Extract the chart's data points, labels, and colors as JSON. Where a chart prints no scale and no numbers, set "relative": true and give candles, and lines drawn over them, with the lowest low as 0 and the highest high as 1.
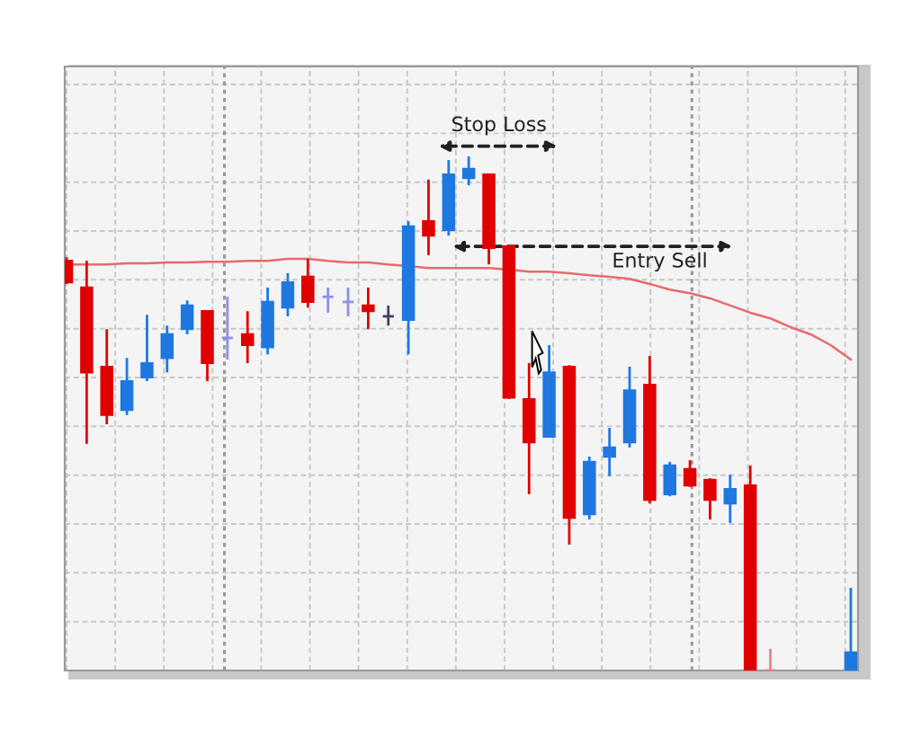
{
  "chart_data": {
    "type": "candlestick",
    "relative": true,
    "grid": true,
    "categories": [
      null,
      null,
      null,
      null,
      null,
      null,
      null,
      null,
      null,
      null,
      null,
      null,
      null,
      null,
      null,
      null,
      null,
      null,
      null,
      null,
      null,
      null,
      null,
      null,
      null,
      null,
      null,
      null,
      null,
      null,
      null,
      null,
      null,
      null,
      null,
      null,
      null,
      null,
      null,
      null
    ],
    "ohlc": [
      [
        0.797,
        0.804,
        0.752,
        0.755
      ],
      [
        0.745,
        0.797,
        0.441,
        0.58
      ],
      [
        0.591,
        0.664,
        0.479,
        0.497
      ],
      [
        0.507,
        0.608,
        0.497,
        0.563
      ],
      [
        0.57,
        0.692,
        0.563,
        0.598
      ],
      [
        0.608,
        0.671,
        0.58,
        0.654
      ],
      [
        0.664,
        0.72,
        0.654,
        0.71
      ],
      [
        0.699,
        0.699,
        0.563,
        0.598
      ],
      [
        0.647,
        0.727,
        0.605,
        0.647
      ],
      [
        0.654,
        0.699,
        0.598,
        0.633
      ],
      [
        0.629,
        0.745,
        0.615,
        0.717
      ],
      [
        0.706,
        0.773,
        0.689,
        0.755
      ],
      [
        0.766,
        0.801,
        0.706,
        0.717
      ],
      [
        0.727,
        0.745,
        0.696,
        0.727
      ],
      [
        0.717,
        0.745,
        0.689,
        0.717
      ],
      [
        0.71,
        0.745,
        0.664,
        0.699
      ],
      [
        0.689,
        0.71,
        0.671,
        0.689
      ],
      [
        0.682,
        0.874,
        0.615,
        0.864
      ],
      [
        0.874,
        0.955,
        0.808,
        0.846
      ],
      [
        0.857,
        0.993,
        0.846,
        0.965
      ],
      [
        0.958,
        1.0,
        0.944,
        0.976
      ],
      [
        0.965,
        0.965,
        0.79,
        0.822
      ],
      [
        0.825,
        0.825,
        0.528,
        0.531
      ],
      [
        0.528,
        0.598,
        0.343,
        0.444
      ],
      [
        0.455,
        0.633,
        0.455,
        0.58
      ],
      [
        0.591,
        0.594,
        0.245,
        0.297
      ],
      [
        0.304,
        0.416,
        0.294,
        0.406
      ],
      [
        0.416,
        0.472,
        0.378,
        0.434
      ],
      [
        0.444,
        0.591,
        0.434,
        0.545
      ],
      [
        0.556,
        0.612,
        0.325,
        0.332
      ],
      [
        0.343,
        0.406,
        0.339,
        0.399
      ],
      [
        0.392,
        0.409,
        0.357,
        0.36
      ],
      [
        0.371,
        0.374,
        0.294,
        0.332
      ],
      [
        0.325,
        0.381,
        0.287,
        0.353
      ],
      [
        0.36,
        0.399,
        0.0,
        0.0
      ],
      [
        0.0,
        0.042,
        0.0,
        0.0
      ],
      null,
      null,
      null,
      [
        0.0,
        0.161,
        0.0,
        0.035
      ]
    ],
    "colors": [
      "#e00000",
      "#e00000",
      "#e00000",
      "#1e78e0",
      "#1e78e0",
      "#1e78e0",
      "#1e78e0",
      "#e00000",
      "#8f8fe8",
      "#e00000",
      "#1e78e0",
      "#1e78e0",
      "#e00000",
      "#8f8fe8",
      "#8f8fe8",
      "#e00000",
      "#404060",
      "#1e78e0",
      "#e00000",
      "#1e78e0",
      "#1e78e0",
      "#e00000",
      "#e00000",
      "#e00000",
      "#1e78e0",
      "#e00000",
      "#1e78e0",
      "#1e78e0",
      "#1e78e0",
      "#e00000",
      "#1e78e0",
      "#e00000",
      "#e00000",
      "#1e78e0",
      "#e00000",
      "#f08080",
      null,
      null,
      null,
      "#1e78e0"
    ],
    "series": [
      {
        "type": "line",
        "color": "#e86a6a",
        "values": [
          0.79,
          0.79,
          0.79,
          0.792,
          0.792,
          0.794,
          0.794,
          0.795,
          0.795,
          0.797,
          0.797,
          0.801,
          0.801,
          0.797,
          0.794,
          0.794,
          0.79,
          0.787,
          0.783,
          0.783,
          0.783,
          0.783,
          0.78,
          0.776,
          0.776,
          0.773,
          0.769,
          0.766,
          0.762,
          0.752,
          0.741,
          0.734,
          0.724,
          0.71,
          0.696,
          0.685,
          0.668,
          0.654,
          0.633,
          0.605
        ]
      }
    ],
    "annotations": [
      "Stop Loss",
      "Entry Sell"
    ]
  }
}
